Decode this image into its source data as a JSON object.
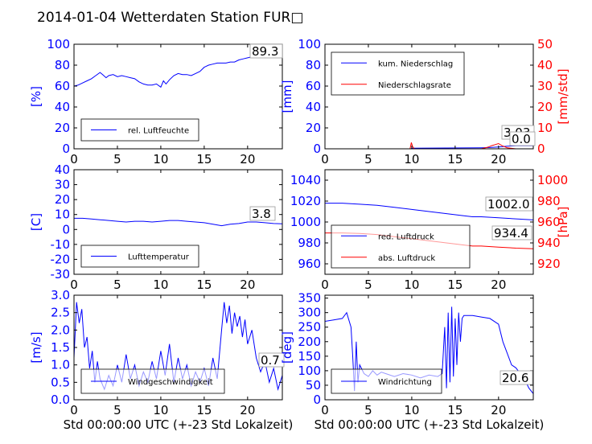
{
  "page": {
    "title": "2014-01-04 Wetterdaten Station FUR□"
  },
  "colors": {
    "left_axis": "#0000ff",
    "right_axis": "#ff0000",
    "frame": "#000000"
  },
  "chart_data": [
    {
      "id": "humidity",
      "type": "line",
      "ylabel": "[%]",
      "xlabel": "",
      "xlim": [
        0,
        24
      ],
      "ylim": [
        0,
        100
      ],
      "xticks": [
        0,
        5,
        10,
        15,
        20
      ],
      "yticks": [
        0,
        20,
        40,
        60,
        80,
        100
      ],
      "legend": "bottom-left",
      "grid": false,
      "series": [
        {
          "name": "rel. Luftfeuchte",
          "color": "#0000ff",
          "x": [
            0,
            0.5,
            1,
            1.5,
            2,
            2.5,
            3,
            3.3,
            3.7,
            4,
            4.5,
            5,
            5.5,
            6,
            6.5,
            7,
            7.5,
            8,
            8.5,
            9,
            9.5,
            10,
            10.3,
            10.6,
            11,
            11.5,
            12,
            12.5,
            13,
            13.5,
            14,
            14.5,
            15,
            15.5,
            16,
            16.5,
            17,
            17.5,
            18,
            18.5,
            19,
            19.5,
            20,
            20.5,
            21,
            21.5,
            22,
            22.5,
            23,
            23.5,
            24
          ],
          "y": [
            60,
            61,
            63,
            65,
            67,
            70,
            73,
            71,
            68,
            70,
            71,
            69,
            70,
            69,
            68,
            67,
            64,
            62,
            61,
            61,
            62,
            59,
            65,
            62,
            66,
            70,
            72,
            71,
            71,
            70,
            72,
            74,
            78,
            80,
            81,
            82,
            82,
            82,
            83,
            83,
            85,
            86,
            87,
            88,
            88.5,
            89,
            89.3,
            89.3,
            89.3,
            89.3,
            89.3
          ]
        }
      ],
      "annotations": [
        {
          "text": "89.3"
        }
      ]
    },
    {
      "id": "precip",
      "type": "line",
      "ylabel": "[mm]",
      "y2label": "[mm/std]",
      "xlabel": "",
      "xlim": [
        0,
        24
      ],
      "ylim": [
        0,
        100
      ],
      "y2lim": [
        0,
        50
      ],
      "xticks": [
        0,
        5,
        10,
        15,
        20
      ],
      "yticks": [
        0,
        20,
        40,
        60,
        80,
        100
      ],
      "y2ticks": [
        0,
        10,
        20,
        30,
        40,
        50
      ],
      "legend": "top-left",
      "grid": false,
      "series": [
        {
          "name": "kum. Niederschlag",
          "color": "#0000ff",
          "axis": "left",
          "x": [
            0,
            5,
            9.9,
            10,
            14,
            18,
            19,
            20,
            21,
            22,
            23,
            24
          ],
          "y": [
            0,
            0,
            0,
            0.5,
            0.8,
            1,
            1.2,
            1.8,
            2.5,
            3,
            3,
            3
          ]
        },
        {
          "name": "Niederschlagsrate",
          "color": "#ff0000",
          "axis": "right",
          "x": [
            0,
            5,
            9.8,
            9.95,
            10.1,
            10.3,
            14,
            18,
            18.8,
            19.2,
            19.6,
            20,
            20.4,
            21,
            22,
            23,
            24
          ],
          "y": [
            0,
            0,
            0,
            3,
            1,
            0,
            0,
            0,
            0.8,
            1.5,
            2,
            2.5,
            1.5,
            0.5,
            0,
            0,
            0
          ]
        }
      ],
      "annotations": [
        {
          "text": "3.03"
        },
        {
          "text": "0.0"
        }
      ]
    },
    {
      "id": "temperature",
      "type": "line",
      "ylabel": "[C]",
      "xlabel": "",
      "xlim": [
        0,
        24
      ],
      "ylim": [
        -30,
        40
      ],
      "xticks": [
        0,
        5,
        10,
        15,
        20
      ],
      "yticks": [
        -30,
        -20,
        -10,
        0,
        10,
        20,
        30,
        40
      ],
      "legend": "bottom-left",
      "grid": false,
      "series": [
        {
          "name": "Lufttemperatur",
          "color": "#0000ff",
          "x": [
            0,
            1,
            2,
            3,
            4,
            5,
            6,
            7,
            8,
            9,
            10,
            11,
            12,
            13,
            14,
            15,
            16,
            17,
            18,
            19,
            20,
            21,
            22,
            23,
            24
          ],
          "y": [
            7.5,
            7.5,
            7,
            6.5,
            6,
            5.5,
            5,
            5.5,
            5.5,
            5,
            5.5,
            6,
            6,
            5.5,
            5,
            4.5,
            3.5,
            2.5,
            3.5,
            4,
            5,
            5,
            4.5,
            4,
            3.8
          ]
        }
      ],
      "annotations": [
        {
          "text": "3.8"
        }
      ]
    },
    {
      "id": "pressure",
      "type": "line",
      "ylabel": "",
      "y2label": "[hPa]",
      "xlabel": "",
      "xlim": [
        0,
        24
      ],
      "ylim": [
        950,
        1050
      ],
      "y2lim": [
        910,
        1010
      ],
      "xticks": [
        0,
        5,
        10,
        15,
        20
      ],
      "yticks": [
        960,
        980,
        1000,
        1020,
        1040
      ],
      "y2ticks": [
        920,
        940,
        960,
        980,
        1000
      ],
      "legend": "bottom-left",
      "grid": false,
      "series": [
        {
          "name": "red. Luftdruck",
          "color": "#0000ff",
          "axis": "left",
          "x": [
            0,
            2,
            4,
            6,
            8,
            10,
            12,
            14,
            16,
            17,
            18,
            20,
            22,
            24
          ],
          "y": [
            1018,
            1018,
            1017,
            1016,
            1014,
            1012,
            1010,
            1008,
            1006,
            1005,
            1005,
            1004,
            1003,
            1002
          ]
        },
        {
          "name": "abs. Luftdruck",
          "color": "#ff0000",
          "axis": "right",
          "x": [
            0,
            2,
            4,
            6,
            8,
            10,
            12,
            14,
            16,
            17,
            18,
            20,
            22,
            24
          ],
          "y": [
            949.5,
            949.5,
            949,
            948,
            946,
            944,
            942,
            940,
            938,
            937,
            937,
            936,
            935,
            934.4
          ]
        }
      ],
      "annotations": [
        {
          "text": "1002.0"
        },
        {
          "text": "934.4"
        }
      ]
    },
    {
      "id": "wind_speed",
      "type": "line",
      "ylabel": "[m/s]",
      "xlabel": "Std 00:00:00 UTC (+-23 Std Lokalzeit)",
      "xlim": [
        0,
        24
      ],
      "ylim": [
        0,
        3
      ],
      "xticks": [
        0,
        5,
        10,
        15,
        20
      ],
      "yticks": [
        0.0,
        0.5,
        1.0,
        1.5,
        2.0,
        2.5,
        3.0
      ],
      "legend": "bottom-left",
      "grid": false,
      "series": [
        {
          "name": "Windgeschwindigkeit",
          "color": "#0000ff",
          "x": [
            0,
            0.3,
            0.6,
            0.9,
            1.2,
            1.5,
            1.8,
            2.1,
            2.4,
            2.7,
            3,
            3.5,
            4,
            4.5,
            5,
            5.5,
            6,
            6.5,
            7,
            7.5,
            8,
            8.5,
            9,
            9.5,
            10,
            10.5,
            11,
            11.5,
            12,
            12.5,
            13,
            13.5,
            14,
            14.5,
            15,
            15.5,
            16,
            16.5,
            17,
            17.3,
            17.6,
            17.9,
            18.2,
            18.5,
            18.8,
            19.1,
            19.4,
            19.7,
            20,
            20.5,
            21,
            21.5,
            22,
            22.5,
            23,
            23.5,
            24
          ],
          "y": [
            1.2,
            2.8,
            2.2,
            2.6,
            1.5,
            1.8,
            0.9,
            1.4,
            0.5,
            1.1,
            0.6,
            0.3,
            0.7,
            0.4,
            1.0,
            0.5,
            1.3,
            0.6,
            1.0,
            0.4,
            0.8,
            0.5,
            1.1,
            0.6,
            1.4,
            0.7,
            1.6,
            0.5,
            1.2,
            0.6,
            1.0,
            0.4,
            0.8,
            0.5,
            0.9,
            0.4,
            1.2,
            0.6,
            2.0,
            2.8,
            2.2,
            2.7,
            1.9,
            2.5,
            2.1,
            2.4,
            1.8,
            2.3,
            1.6,
            2.0,
            1.2,
            0.8,
            1.1,
            0.5,
            0.9,
            0.3,
            0.7
          ]
        }
      ],
      "annotations": [
        {
          "text": "0.7"
        }
      ]
    },
    {
      "id": "wind_direction",
      "type": "line",
      "ylabel": "[deg]",
      "xlabel": "Std 00:00:00 UTC (+-23 Std Lokalzeit)",
      "xlim": [
        0,
        24
      ],
      "ylim": [
        0,
        360
      ],
      "xticks": [
        0,
        5,
        10,
        15,
        20
      ],
      "yticks": [
        0,
        50,
        100,
        150,
        200,
        250,
        300,
        350
      ],
      "legend": "bottom-left",
      "grid": false,
      "series": [
        {
          "name": "Windrichtung",
          "color": "#0000ff",
          "x": [
            0,
            1,
            2,
            2.5,
            3,
            3.2,
            3.4,
            3.6,
            3.8,
            4,
            4.5,
            5,
            5.5,
            6,
            6.5,
            7,
            8,
            9,
            10,
            11,
            12,
            13,
            13.5,
            13.8,
            14,
            14.2,
            14.4,
            14.6,
            14.8,
            15,
            15.2,
            15.4,
            15.6,
            15.8,
            16,
            17,
            18,
            19,
            20,
            20.5,
            21,
            21.5,
            22,
            22.5,
            23,
            23.5,
            24
          ],
          "y": [
            270,
            275,
            280,
            300,
            250,
            150,
            30,
            200,
            60,
            120,
            90,
            80,
            100,
            85,
            95,
            90,
            80,
            90,
            85,
            75,
            85,
            80,
            90,
            250,
            40,
            300,
            60,
            320,
            80,
            280,
            120,
            300,
            200,
            280,
            290,
            290,
            285,
            280,
            260,
            200,
            160,
            120,
            110,
            90,
            70,
            40,
            21
          ]
        }
      ],
      "annotations": [
        {
          "text": "20.6"
        }
      ]
    }
  ]
}
